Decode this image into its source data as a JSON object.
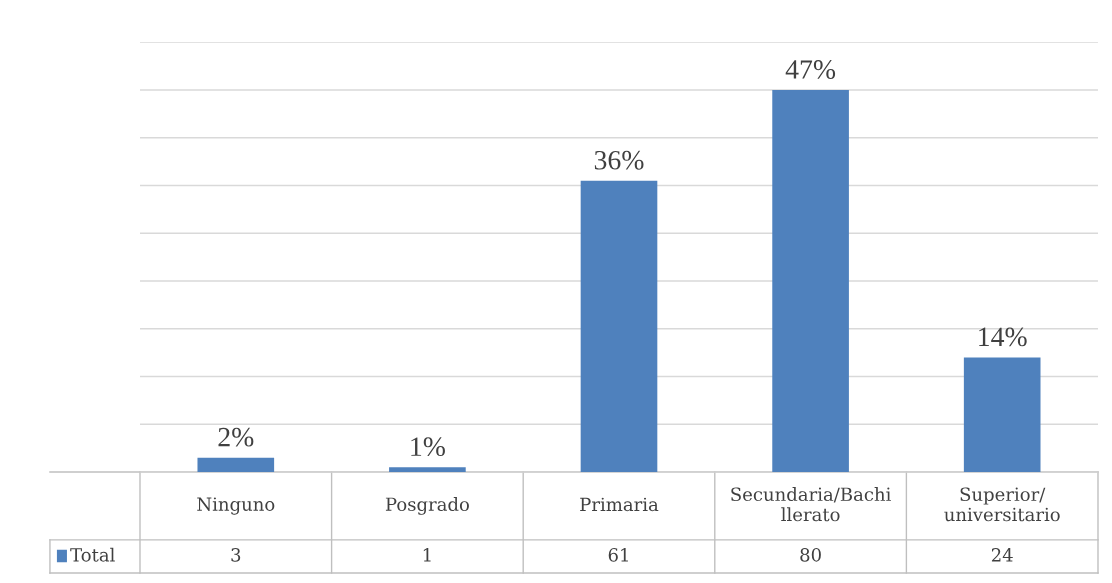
{
  "chart_data": {
    "type": "bar",
    "categories": [
      "Ninguno",
      "Posgrado",
      "Primaria",
      "Secundaria/Bachi\nllerato",
      "Superior/\nuniversitario"
    ],
    "series": [
      {
        "name": "Total",
        "color": "#4f81bd",
        "values": [
          3,
          1,
          61,
          80,
          24
        ]
      }
    ],
    "annotations": [
      {
        "text": "2%",
        "x": "Ninguno",
        "y": 3
      },
      {
        "text": "1%",
        "x": "Posgrado",
        "y": 1
      },
      {
        "text": "36%",
        "x": "Primaria",
        "y": 61
      },
      {
        "text": "47%",
        "x": "Secundaria/Bachi\nllerato",
        "y": 80
      },
      {
        "text": "14%",
        "x": "Superior/\nuniversitario",
        "y": 24
      }
    ],
    "ylim": [
      0,
      90
    ],
    "yticks": [
      {
        "value": 0,
        "label": null
      },
      {
        "value": 10,
        "label": null
      },
      {
        "value": 20,
        "label": null
      },
      {
        "value": 30,
        "label": null
      },
      {
        "value": 40,
        "label": null
      },
      {
        "value": 50,
        "label": null
      },
      {
        "value": 60,
        "label": null
      },
      {
        "value": 70,
        "label": null
      },
      {
        "value": 80,
        "label": null
      },
      {
        "value": 90,
        "label": null
      }
    ],
    "grid": "y",
    "data_labels": true,
    "legend": "bottom left"
  }
}
